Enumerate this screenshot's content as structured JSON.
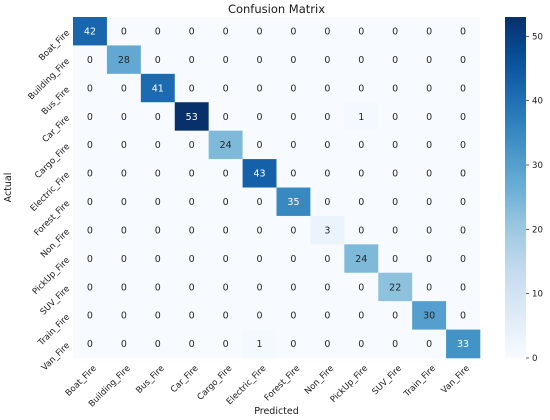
{
  "chart_data": {
    "type": "heatmap",
    "title": "Confusion Matrix",
    "xlabel": "Predicted",
    "ylabel": "Actual",
    "x_categories": [
      "Boat_Fire",
      "Building_Fire",
      "Bus_Fire",
      "Car_Fire",
      "Cargo_Fire",
      "Electric_Fire",
      "Forest_Fire",
      "Non_Fire",
      "PickUp_Fire",
      "SUV_Fire",
      "Train_Fire",
      "Van_Fire"
    ],
    "y_categories": [
      "Boat_Fire",
      "Building_Fire",
      "Bus_Fire",
      "Car_Fire",
      "Cargo_Fire",
      "Electric_Fire",
      "Forest_Fire",
      "Non_Fire",
      "PickUp_Fire",
      "SUV_Fire",
      "Train_Fire",
      "Van_Fire"
    ],
    "values": [
      [
        42,
        0,
        0,
        0,
        0,
        0,
        0,
        0,
        0,
        0,
        0,
        0
      ],
      [
        0,
        28,
        0,
        0,
        0,
        0,
        0,
        0,
        0,
        0,
        0,
        0
      ],
      [
        0,
        0,
        41,
        0,
        0,
        0,
        0,
        0,
        0,
        0,
        0,
        0
      ],
      [
        0,
        0,
        0,
        53,
        0,
        0,
        0,
        0,
        1,
        0,
        0,
        0
      ],
      [
        0,
        0,
        0,
        0,
        24,
        0,
        0,
        0,
        0,
        0,
        0,
        0
      ],
      [
        0,
        0,
        0,
        0,
        0,
        43,
        0,
        0,
        0,
        0,
        0,
        0
      ],
      [
        0,
        0,
        0,
        0,
        0,
        0,
        35,
        0,
        0,
        0,
        0,
        0
      ],
      [
        0,
        0,
        0,
        0,
        0,
        0,
        0,
        3,
        0,
        0,
        0,
        0
      ],
      [
        0,
        0,
        0,
        0,
        0,
        0,
        0,
        0,
        24,
        0,
        0,
        0
      ],
      [
        0,
        0,
        0,
        0,
        0,
        0,
        0,
        0,
        0,
        22,
        0,
        0
      ],
      [
        0,
        0,
        0,
        0,
        0,
        0,
        0,
        0,
        0,
        0,
        30,
        0
      ],
      [
        0,
        0,
        0,
        0,
        0,
        1,
        0,
        0,
        0,
        0,
        0,
        33
      ]
    ],
    "colorbar": {
      "min": 0,
      "max": 53,
      "ticks": [
        0,
        10,
        20,
        30,
        40,
        50
      ],
      "colormap": "Blues"
    },
    "grid": false,
    "legend": "colorbar-right"
  }
}
